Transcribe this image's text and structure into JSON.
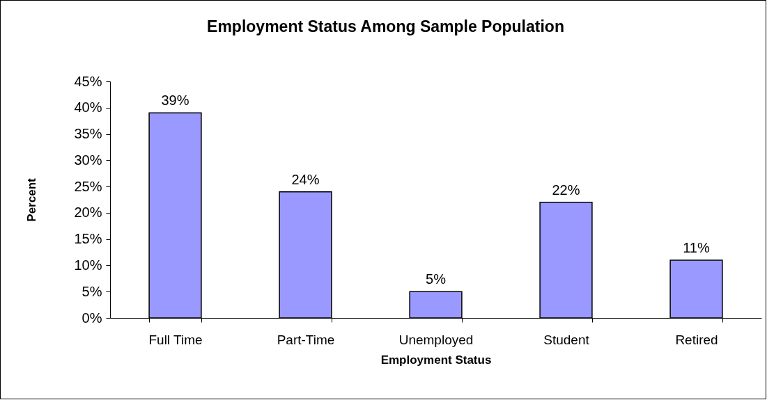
{
  "chart_data": {
    "type": "bar",
    "title": "Employment Status Among Sample Population",
    "xlabel": "Employment Status",
    "ylabel": "Percent",
    "categories": [
      "Full Time",
      "Part-Time",
      "Unemployed",
      "Student",
      "Retired"
    ],
    "values": [
      39,
      24,
      5,
      22,
      11
    ],
    "color": "#9999ff",
    "value_labels": [
      "39%",
      "24%",
      "5%",
      "22%",
      "11%"
    ],
    "ylim": [
      0,
      45
    ],
    "yticks": [
      {
        "value": 0,
        "label": "0%"
      },
      {
        "value": 5,
        "label": "5%"
      },
      {
        "value": 10,
        "label": "10%"
      },
      {
        "value": 15,
        "label": "15%"
      },
      {
        "value": 20,
        "label": "20%"
      },
      {
        "value": 25,
        "label": "25%"
      },
      {
        "value": 30,
        "label": "30%"
      },
      {
        "value": 35,
        "label": "35%"
      },
      {
        "value": 40,
        "label": "40%"
      },
      {
        "value": 45,
        "label": "45%"
      }
    ]
  }
}
